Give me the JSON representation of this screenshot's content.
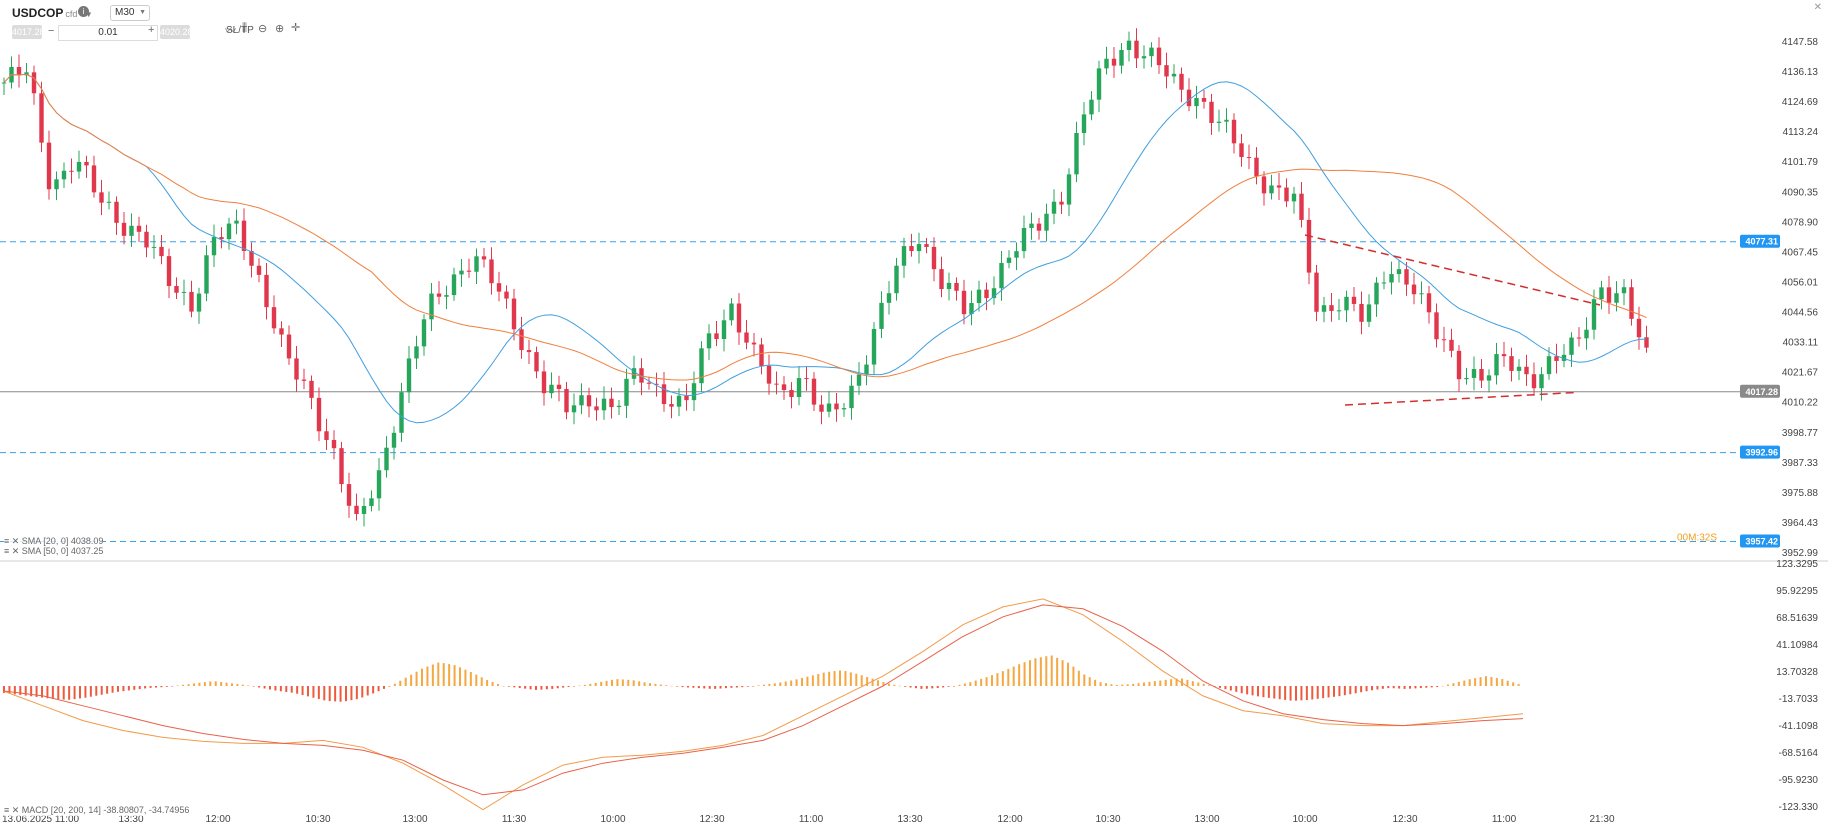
{
  "toolbar": {
    "symbol": "USDCOP",
    "symbol_suffix": "cfd",
    "timeframe": "M30",
    "sell_price": "4017.28",
    "buy_price": "4020.28",
    "quantity": "0.01",
    "sltp_label": "SL/TP"
  },
  "price_axis": {
    "ticks": [
      "4147.58",
      "4136.13",
      "4124.69",
      "4113.24",
      "4101.79",
      "4090.35",
      "4078.90",
      "4067.45",
      "4056.01",
      "4044.56",
      "4033.11",
      "4021.67",
      "4010.22",
      "3998.77",
      "3987.33",
      "3975.88",
      "3964.43",
      "3952.99"
    ]
  },
  "macd_axis": {
    "ticks": [
      "123.3295",
      "95.92295",
      "68.51639",
      "41.10984",
      "13.70328",
      "-13.7033",
      "-41.1098",
      "-68.5164",
      "-95.9230",
      "-123.330"
    ]
  },
  "time_axis": {
    "labels": [
      "13.06.2025 11:00",
      "13:30",
      "12:00",
      "10:30",
      "13:00",
      "11:30",
      "10:00",
      "12:30",
      "11:00",
      "13:30",
      "12:00",
      "10:30",
      "13:00",
      "10:00",
      "12:30",
      "11:00",
      "21:30"
    ]
  },
  "badges": {
    "level_upper": "4077.31",
    "level_current": "4017.28",
    "level_lower": "3992.96",
    "level_bottom": "3957.42",
    "timer": "00M:32S"
  },
  "indicators": {
    "sma20": "SMA [20, 0] 4038.09",
    "sma50": "SMA [50, 0] 4037.25",
    "macd": "MACD [20, 200, 14] -38.80807, -34.74956"
  },
  "colors": {
    "up": "#26a65b",
    "down": "#e0374c",
    "sma20": "#3f9fe0",
    "sma50": "#f07f3c",
    "level": "#3aa0e8",
    "trendline": "#d32f2f",
    "macd_pos": "#f5a742",
    "macd_neg": "#ee5a3c"
  },
  "chart_data": [
    {
      "type": "candlestick",
      "title": "USDCOP M30",
      "ylim": [
        3950,
        4158
      ],
      "key_levels": [
        4077.31,
        4017.28,
        3992.96,
        3957.42
      ],
      "sma20_last": 4038.09,
      "sma50_last": 4037.25,
      "close_path": [
        4141,
        4145,
        4100,
        4110,
        4095,
        4086,
        4078,
        4062,
        4053,
        4078,
        4083,
        4060,
        4030,
        4016,
        3995,
        3962,
        3985,
        4020,
        4048,
        4062,
        4072,
        4058,
        4040,
        4020,
        4010,
        4016,
        4010,
        4025,
        4018,
        4010,
        4038,
        4052,
        4030,
        4016,
        4025,
        4005,
        4015,
        4040,
        4065,
        4080,
        4062,
        4048,
        4060,
        4075,
        4082,
        4095,
        4128,
        4148,
        4158,
        4150,
        4138,
        4135,
        4122,
        4108,
        4100,
        4094,
        4048,
        4056,
        4045,
        4068,
        4062,
        4040,
        4027,
        4024,
        4029,
        4023,
        4030,
        4034,
        4060,
        4056,
        4030
      ],
      "trendlines": [
        {
          "from": [
            1,
            4080
          ],
          "to": [
            2,
            4052
          ]
        },
        {
          "from": [
            1,
            4012
          ],
          "to": [
            2,
            4017
          ]
        }
      ]
    },
    {
      "type": "histogram",
      "title": "MACD [20, 200, 14]",
      "ylim": [
        -123.33,
        123.33
      ],
      "macd_last": -38.80807,
      "signal_last": -34.74956,
      "hist": [
        -7,
        -9,
        -11,
        -13,
        -14,
        -12,
        -9,
        -6,
        -4,
        -2,
        -1,
        1,
        3,
        5,
        3,
        1,
        -2,
        -5,
        -7,
        -11,
        -15,
        -16,
        -13,
        -7,
        0,
        9,
        18,
        24,
        21,
        14,
        6,
        0,
        -2,
        -4,
        -3,
        -1,
        1,
        4,
        7,
        6,
        3,
        1,
        -1,
        -2,
        -3,
        -2,
        -1,
        1,
        3,
        6,
        10,
        14,
        16,
        12,
        7,
        2,
        -1,
        -3,
        -2,
        0,
        4,
        9,
        15,
        22,
        28,
        31,
        24,
        12,
        4,
        1,
        2,
        4,
        6,
        8,
        4,
        0,
        -4,
        -8,
        -11,
        -13,
        -15,
        -14,
        -12,
        -10,
        -7,
        -4,
        -2,
        -3,
        -2,
        -1,
        3,
        7,
        10,
        7,
        2
      ],
      "macd_line": [
        -5,
        -20,
        -35,
        -45,
        -52,
        -56,
        -58,
        -58,
        -55,
        -62,
        -78,
        -100,
        -125,
        -100,
        -80,
        -72,
        -70,
        -66,
        -60,
        -50,
        -30,
        -10,
        10,
        35,
        62,
        80,
        88,
        72,
        45,
        15,
        -10,
        -25,
        -30,
        -38,
        -40,
        -40,
        -36,
        -32,
        -28
      ],
      "signal_line": [
        -5,
        -10,
        -20,
        -30,
        -40,
        -48,
        -54,
        -58,
        -60,
        -65,
        -75,
        -95,
        -110,
        -105,
        -88,
        -78,
        -72,
        -68,
        -62,
        -55,
        -40,
        -20,
        0,
        25,
        50,
        70,
        82,
        78,
        60,
        35,
        5,
        -15,
        -28,
        -34,
        -38,
        -40,
        -38,
        -35,
        -33
      ]
    }
  ]
}
